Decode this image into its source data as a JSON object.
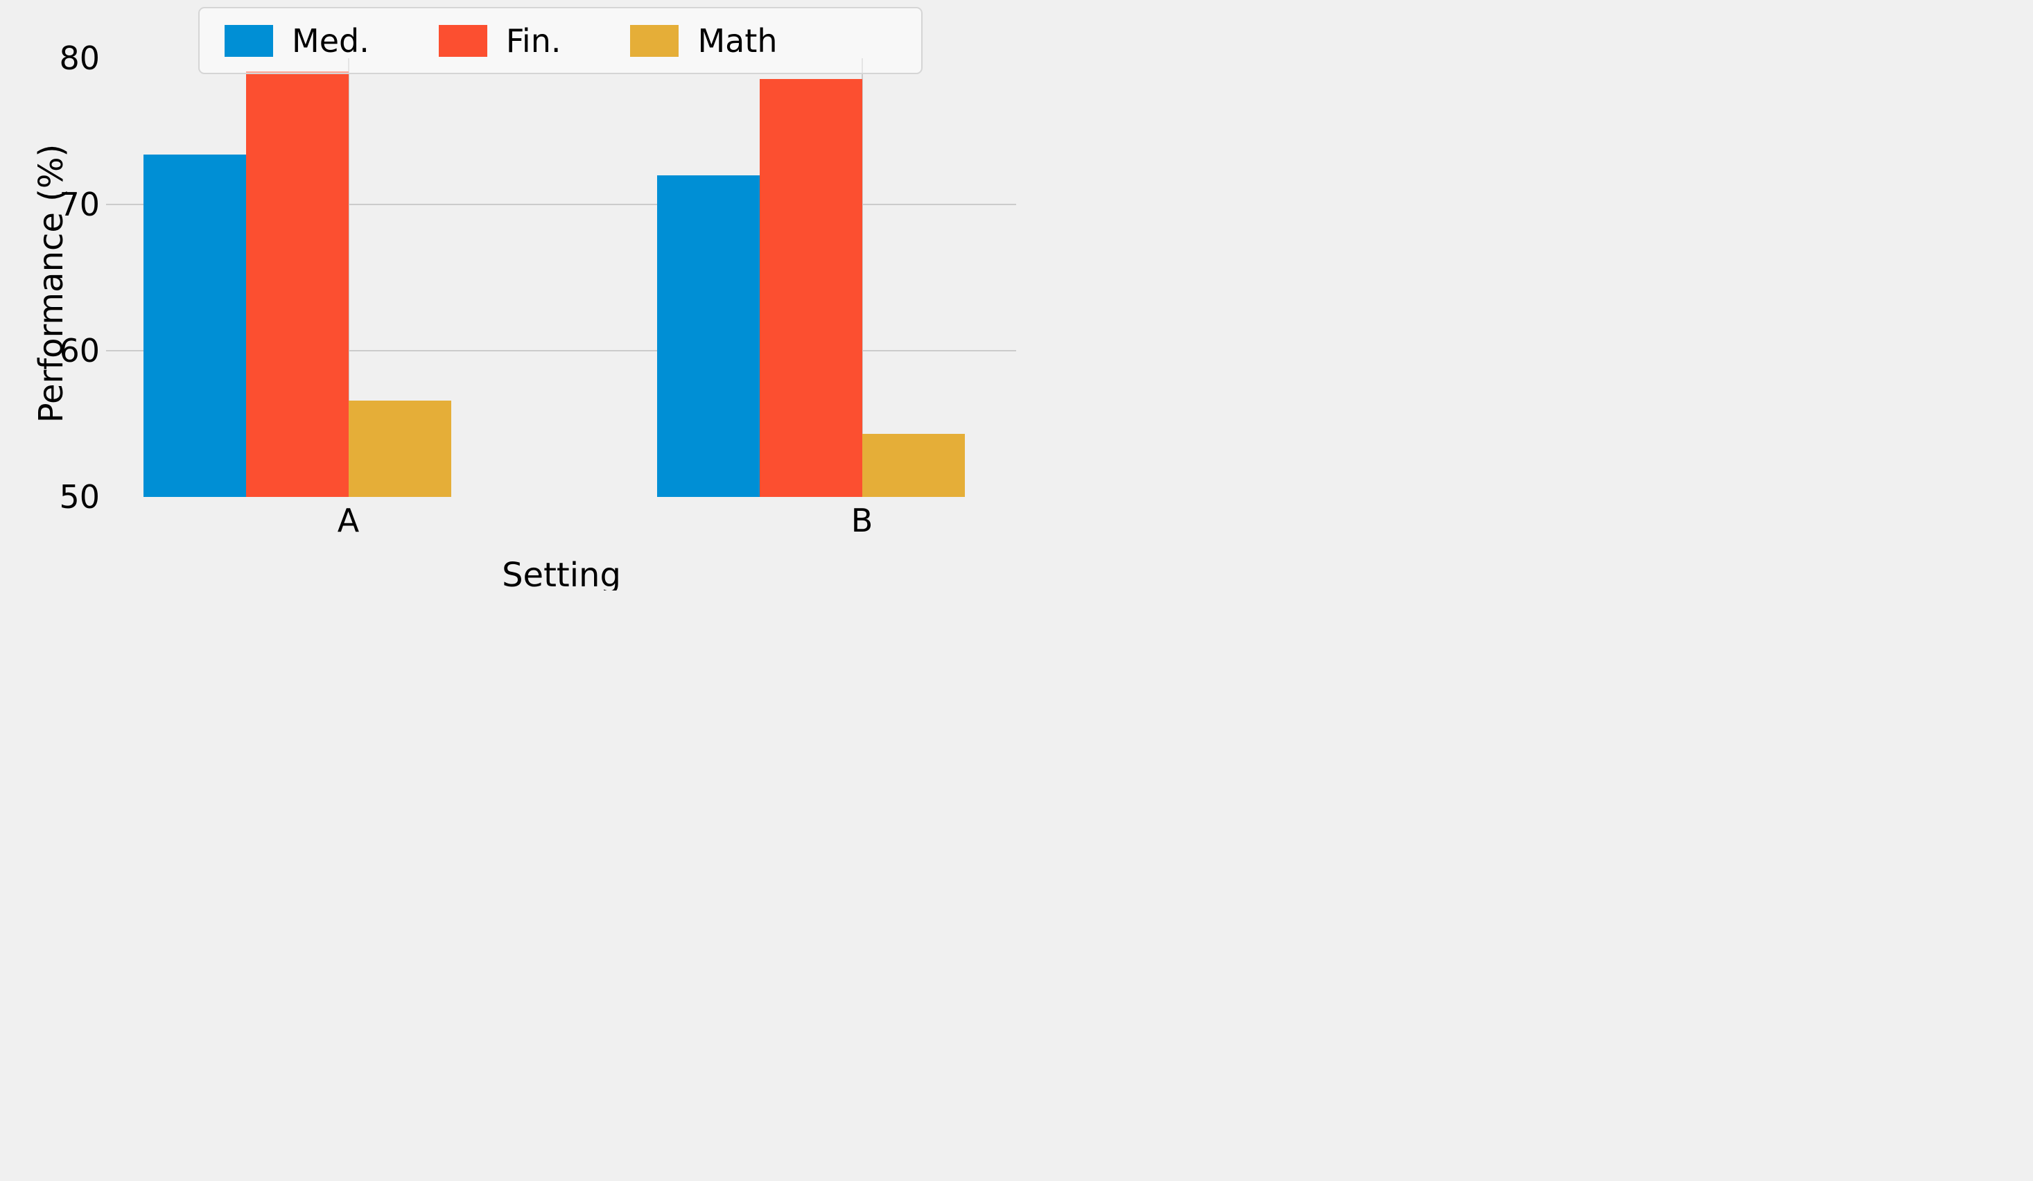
{
  "figure": {
    "background_color": "#f0f0f0",
    "gridline_color": "#cbcbcb",
    "text_color": "#000000"
  },
  "axes": {
    "ylabel": "Performance (%)",
    "xlabel": "Setting",
    "yticks": [
      "50",
      "60",
      "70",
      "80"
    ],
    "ytick_values": [
      50,
      60,
      70,
      80
    ],
    "xtick_labels": [
      "A",
      "B"
    ]
  },
  "legend": {
    "items": [
      {
        "label": "Med.",
        "color": "#008fd5"
      },
      {
        "label": "Fin.",
        "color": "#fc4f30"
      },
      {
        "label": "Math",
        "color": "#e5ae38"
      }
    ]
  },
  "chart_data": {
    "type": "bar",
    "categories": [
      "A",
      "B"
    ],
    "series": [
      {
        "name": "Med.",
        "color": "#008fd5",
        "values": [
          73.4,
          72.0
        ]
      },
      {
        "name": "Fin.",
        "color": "#fc4f30",
        "values": [
          79.1,
          78.6
        ]
      },
      {
        "name": "Math",
        "color": "#e5ae38",
        "values": [
          56.6,
          54.3
        ]
      }
    ],
    "title": "",
    "xlabel": "Setting",
    "ylabel": "Performance (%)",
    "ylim": [
      50,
      80
    ],
    "grid": "horizontal gridlines at 60 and 70, vertical gridlines at each category tick",
    "legend_position": "upper center, inside axes, semi-transparent frame"
  }
}
